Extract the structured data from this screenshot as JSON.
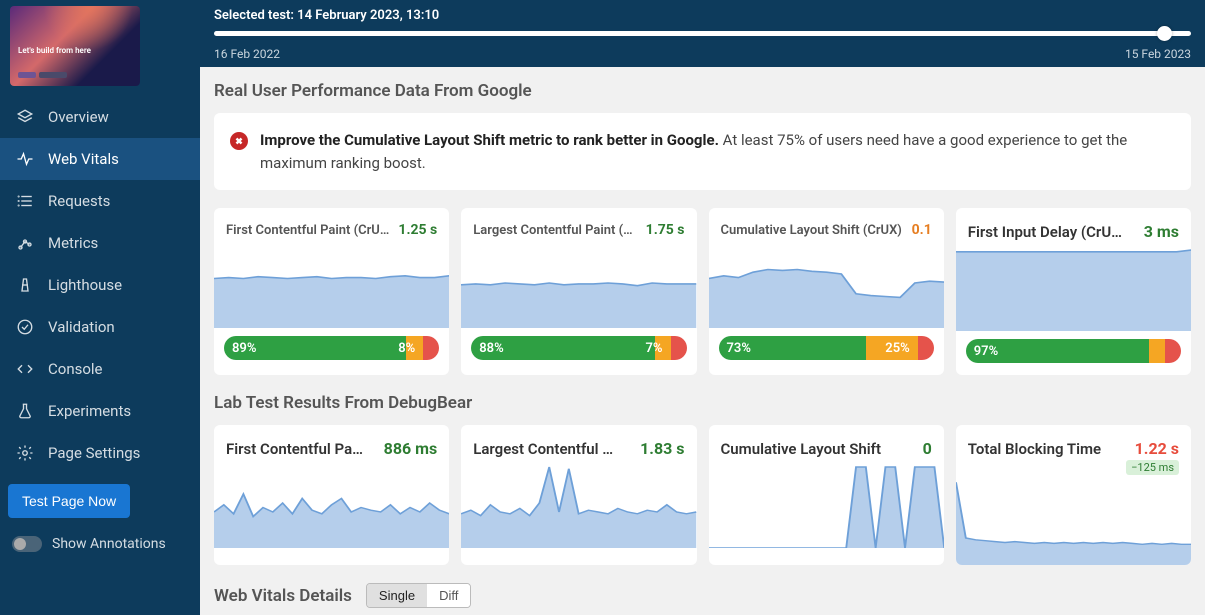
{
  "thumbnail": {
    "label": "Let's build from here"
  },
  "sidebar": {
    "items": [
      {
        "label": "Overview",
        "icon": "layers"
      },
      {
        "label": "Web Vitals",
        "icon": "pulse"
      },
      {
        "label": "Requests",
        "icon": "list"
      },
      {
        "label": "Metrics",
        "icon": "scatter"
      },
      {
        "label": "Lighthouse",
        "icon": "lighthouse"
      },
      {
        "label": "Validation",
        "icon": "check-circle"
      },
      {
        "label": "Console",
        "icon": "code"
      },
      {
        "label": "Experiments",
        "icon": "flask"
      },
      {
        "label": "Page Settings",
        "icon": "gear"
      }
    ],
    "activeIndex": 1,
    "testButton": "Test Page Now",
    "toggleLabel": "Show Annotations",
    "toggleOn": false
  },
  "topbar": {
    "selectedTestLabel": "Selected test: 14 February 2023, 13:10",
    "timelineStart": "16 Feb 2022",
    "timelineEnd": "15 Feb 2023",
    "handlePositionPct": 96.5
  },
  "crux": {
    "sectionTitle": "Real User Performance Data From Google",
    "banner": {
      "bold": "Improve the Cumulative Layout Shift metric to rank better in Google.",
      "rest": " At least 75% of users need have a good experience to get the maximum ranking boost."
    },
    "cards": [
      {
        "label": "First Contentful Paint (CrUX)",
        "value": "1.25 s",
        "valueColor": "#2e7d32",
        "spark": {
          "type": "area",
          "color": "#a8c5e8",
          "values": [
            0.55,
            0.56,
            0.55,
            0.57,
            0.56,
            0.55,
            0.56,
            0.57,
            0.55,
            0.56,
            0.56,
            0.55,
            0.57,
            0.58,
            0.56,
            0.56,
            0.58
          ],
          "ylim": [
            0,
            1
          ]
        },
        "dist": {
          "good": 89,
          "ok": 8,
          "bad": 3,
          "goodLabel": "89%",
          "okLabel": "8%"
        }
      },
      {
        "label": "Largest Contentful Paint (CrU…",
        "value": "1.75 s",
        "valueColor": "#2e7d32",
        "spark": {
          "type": "area",
          "color": "#a8c5e8",
          "values": [
            0.48,
            0.49,
            0.48,
            0.5,
            0.49,
            0.48,
            0.5,
            0.48,
            0.49,
            0.49,
            0.5,
            0.49,
            0.47,
            0.5,
            0.49,
            0.49,
            0.49
          ],
          "ylim": [
            0,
            1
          ]
        },
        "dist": {
          "good": 88,
          "ok": 7,
          "bad": 5,
          "goodLabel": "88%",
          "okLabel": "7%"
        }
      },
      {
        "label": "Cumulative Layout Shift (CrUX)",
        "value": "0.1",
        "valueColor": "#e67e22",
        "spark": {
          "type": "area",
          "color": "#a8c5e8",
          "values": [
            0.55,
            0.58,
            0.56,
            0.62,
            0.65,
            0.64,
            0.65,
            0.63,
            0.62,
            0.6,
            0.38,
            0.36,
            0.35,
            0.34,
            0.5,
            0.52,
            0.51
          ],
          "ylim": [
            0,
            1
          ]
        },
        "dist": {
          "good": 73,
          "ok": 25,
          "bad": 2,
          "goodLabel": "73%",
          "okLabel": "25%"
        }
      },
      {
        "label": "First Input Delay (CrU…",
        "value": "3 ms",
        "valueColor": "#2e7d32",
        "labelBig": true,
        "spark": {
          "type": "area",
          "color": "#a8c5e8",
          "values": [
            0.88,
            0.88,
            0.88,
            0.88,
            0.88,
            0.88,
            0.88,
            0.88,
            0.88,
            0.88,
            0.88,
            0.88,
            0.88,
            0.88,
            0.88,
            0.88,
            0.9
          ],
          "ylim": [
            0,
            1
          ]
        },
        "dist": {
          "good": 97,
          "ok": 1,
          "bad": 2,
          "goodLabel": "97%",
          "okLabel": ""
        }
      }
    ]
  },
  "lab": {
    "sectionTitle": "Lab Test Results From DebugBear",
    "cards": [
      {
        "label": "First Contentful Pa…",
        "value": "886 ms",
        "valueColor": "#2e7d32",
        "spark": {
          "type": "area",
          "color": "#a8c5e8",
          "values": [
            0.4,
            0.48,
            0.38,
            0.6,
            0.35,
            0.45,
            0.4,
            0.5,
            0.38,
            0.55,
            0.42,
            0.38,
            0.48,
            0.55,
            0.4,
            0.45,
            0.42,
            0.4,
            0.48,
            0.38,
            0.45,
            0.4,
            0.5,
            0.42,
            0.38
          ],
          "ylim": [
            0,
            1
          ]
        }
      },
      {
        "label": "Largest Contentful …",
        "value": "1.83 s",
        "valueColor": "#2e7d32",
        "spark": {
          "type": "area",
          "color": "#a8c5e8",
          "values": [
            0.38,
            0.42,
            0.36,
            0.48,
            0.4,
            0.38,
            0.44,
            0.36,
            0.5,
            0.9,
            0.4,
            0.88,
            0.38,
            0.42,
            0.4,
            0.38,
            0.44,
            0.4,
            0.38,
            0.42,
            0.4,
            0.48,
            0.4,
            0.38,
            0.4
          ],
          "ylim": [
            0,
            1
          ]
        }
      },
      {
        "label": "Cumulative Layout Shift",
        "value": "0",
        "valueColor": "#2e7d32",
        "spark": {
          "type": "area",
          "color": "#a8c5e8",
          "values": [
            0,
            0,
            0,
            0,
            0,
            0,
            0,
            0,
            0,
            0,
            0,
            0,
            0,
            0,
            0,
            0.9,
            0.9,
            0,
            0.9,
            0.9,
            0,
            0.9,
            0.9,
            0.9,
            0
          ],
          "ylim": [
            0,
            1
          ]
        }
      },
      {
        "label": "Total Blocking Time",
        "value": "1.22 s",
        "valueColor": "#e74c3c",
        "delta": "−125 ms",
        "spark": {
          "type": "area",
          "color": "#a8c5e8",
          "values": [
            0.92,
            0.3,
            0.28,
            0.27,
            0.26,
            0.25,
            0.26,
            0.25,
            0.24,
            0.25,
            0.24,
            0.25,
            0.24,
            0.25,
            0.24,
            0.25,
            0.24,
            0.25,
            0.24,
            0.23,
            0.24,
            0.23,
            0.24,
            0.23,
            0.23
          ],
          "ylim": [
            0,
            1
          ]
        }
      }
    ]
  },
  "details": {
    "title": "Web Vitals Details",
    "toggle": {
      "options": [
        "Single",
        "Diff"
      ],
      "activeIndex": 0
    }
  },
  "colors": {
    "sidebarBg": "#0d3b5c",
    "sidebarActive": "#1a5180",
    "good": "#2ea043",
    "ok": "#f5a623",
    "bad": "#e5534b",
    "sparkFill": "#a8c5e8",
    "sparkStroke": "#6ea0d8"
  }
}
